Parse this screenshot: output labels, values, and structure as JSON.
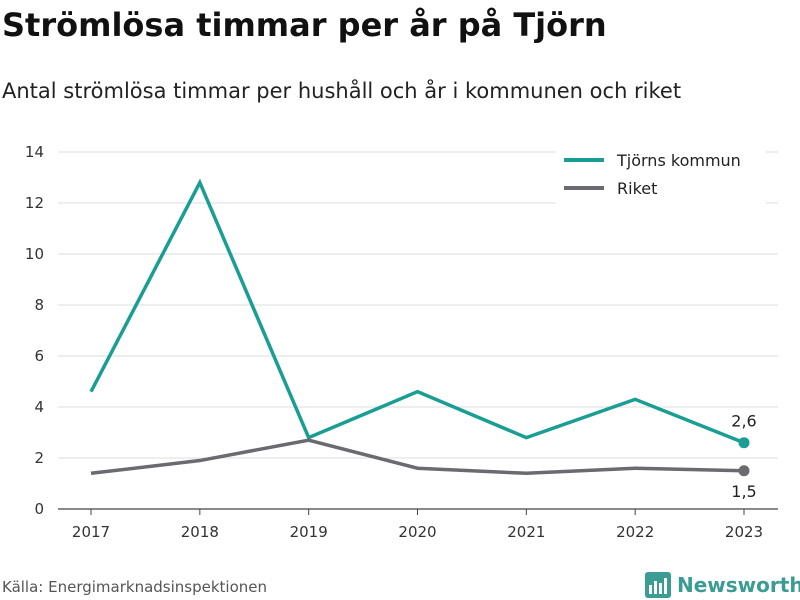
{
  "header": {
    "title": "Strömlösa timmar per år på Tjörn",
    "subtitle": "Antal strömlösa timmar per hushåll och år i kommunen och riket"
  },
  "footer": {
    "source": "Källa: Energimarknadsinspektionen",
    "brand": "Newsworthy",
    "brand_icon": "newsworthy-logo-icon",
    "brand_color": "#3a9c92"
  },
  "chart_data": {
    "type": "line",
    "x": [
      "2017",
      "2018",
      "2019",
      "2020",
      "2021",
      "2022",
      "2023"
    ],
    "ylim": [
      0,
      14
    ],
    "yticks": [
      "0",
      "2",
      "4",
      "6",
      "8",
      "10",
      "12",
      "14"
    ],
    "grid": true,
    "legend_position": "top-right",
    "series": [
      {
        "name": "Tjörns kommun",
        "color": "#1a9e94",
        "values": [
          4.6,
          12.8,
          2.8,
          4.6,
          2.8,
          4.3,
          2.6
        ],
        "end_label": "2,6"
      },
      {
        "name": "Riket",
        "color": "#6b6a70",
        "values": [
          1.4,
          1.9,
          2.7,
          1.6,
          1.4,
          1.6,
          1.5
        ],
        "end_label": "1,5"
      }
    ]
  }
}
